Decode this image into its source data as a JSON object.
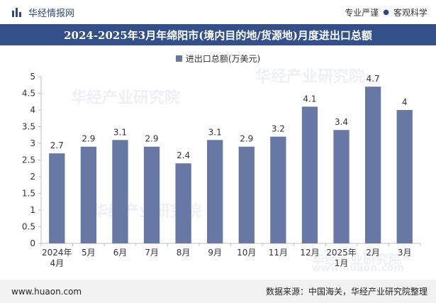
{
  "header": {
    "brand_name": "华经情报网",
    "brand_icon": "bar-logo-icon",
    "slogan_left": "专业严谨",
    "slogan_dot": "●",
    "slogan_right": "客观科学"
  },
  "footer": {
    "website": "www.huaon.com",
    "source": "数据来源：中国海关，华经产业研究院整理"
  },
  "watermark": {
    "text": "华经产业研究院",
    "url": "www.huaon.com"
  },
  "colors": {
    "bar": "#6678a3",
    "title_bg": "#34508a",
    "brand": "#2e4a78"
  },
  "chart_data": {
    "type": "bar",
    "title": "2024-2025年3月年绵阳市(境内目的地/货源地)月度进出口总额",
    "legend": [
      "进出口总额(万美元)"
    ],
    "categories": [
      "2024年\n4月",
      "5月",
      "6月",
      "7月",
      "8月",
      "9月",
      "10月",
      "11月",
      "12月",
      "2025年\n1月",
      "2月",
      "3月"
    ],
    "series": [
      {
        "name": "进出口总额(万美元)",
        "values": [
          2.7,
          2.9,
          3.1,
          2.9,
          2.4,
          3.1,
          2.9,
          3.2,
          4.1,
          3.4,
          4.7,
          4
        ]
      }
    ],
    "value_labels": [
      "2.7",
      "2.9",
      "3.1",
      "2.9",
      "2.4",
      "3.1",
      "2.9",
      "3.2",
      "4.1",
      "3.4",
      "4.7",
      "4"
    ],
    "ylim": [
      0,
      5
    ],
    "yticks": [
      "0",
      "0.5",
      "1",
      "1.5",
      "2",
      "2.5",
      "3",
      "3.5",
      "4",
      "4.5",
      "5"
    ],
    "xlabel": "",
    "ylabel": "",
    "grid": false,
    "legend_position": "top-center"
  }
}
